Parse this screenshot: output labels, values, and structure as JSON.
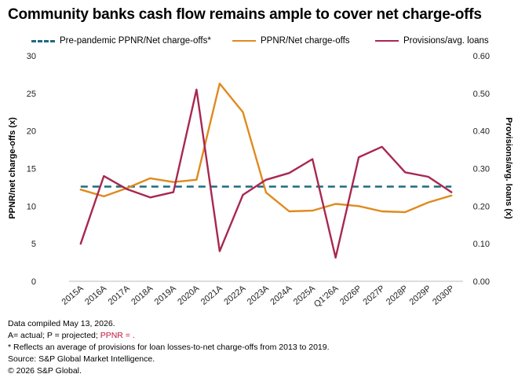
{
  "title": "Community banks cash flow remains ample to cover net charge-offs",
  "legend": {
    "baseline": "Pre-pandemic PPNR/Net charge-offs*",
    "ppnr": "PPNR/Net charge-offs",
    "provisions": "Provisions/avg. loans"
  },
  "colors": {
    "baseline": "#1f6b80",
    "ppnr": "#e08a1e",
    "provisions": "#a8284f"
  },
  "chart_data": {
    "type": "line",
    "categories": [
      "2015A",
      "2016A",
      "2017A",
      "2018A",
      "2019A",
      "2020A",
      "2021A",
      "2022A",
      "2023A",
      "2024A",
      "2025A",
      "Q1'26A",
      "2026P",
      "2027P",
      "2028P",
      "2029P",
      "2030P"
    ],
    "series": [
      {
        "name": "PPNR/Net charge-offs",
        "axis": "left",
        "values": [
          12.2,
          11.3,
          12.4,
          13.7,
          13.2,
          13.5,
          26.3,
          22.5,
          11.8,
          9.3,
          9.4,
          10.3,
          10.0,
          9.3,
          9.2,
          10.5,
          11.4
        ]
      },
      {
        "name": "Provisions/avg. loans",
        "axis": "right",
        "values": [
          0.1,
          0.28,
          0.245,
          0.223,
          0.237,
          0.51,
          0.08,
          0.23,
          0.27,
          0.288,
          0.325,
          0.063,
          0.33,
          0.358,
          0.29,
          0.278,
          0.237
        ]
      },
      {
        "name": "Pre-pandemic PPNR/Net charge-offs*",
        "axis": "left",
        "style": "dashed",
        "values": [
          12.6,
          12.6,
          12.6,
          12.6,
          12.6,
          12.6,
          12.6,
          12.6,
          12.6,
          12.6,
          12.6,
          12.6,
          12.6,
          12.6,
          12.6,
          12.6,
          12.6
        ]
      }
    ],
    "ylabel": "PPNR/net charge-offs (x)",
    "ylim": [
      0,
      30
    ],
    "yticks": [
      "0",
      "5",
      "10",
      "15",
      "20",
      "25",
      "30"
    ],
    "y2label": "Provisions/avg. loans (x)",
    "y2lim": [
      0,
      0.6
    ],
    "y2ticks": [
      "0.00",
      "0.10",
      "0.20",
      "0.30",
      "0.40",
      "0.50",
      "0.60"
    ],
    "grid": false,
    "legend_position": "top"
  },
  "notes": {
    "line1": "Data compiled May 13, 2026.",
    "line2_prefix": "A= actual; P = projected; ",
    "line2_red": "PPNR = .",
    "line3": "* Reflects an average of provisions for loan losses-to-net charge-offs from 2013 to 2019.",
    "line4": "Source: S&P Global Market Intelligence.",
    "line5": "© 2026 S&P Global."
  }
}
